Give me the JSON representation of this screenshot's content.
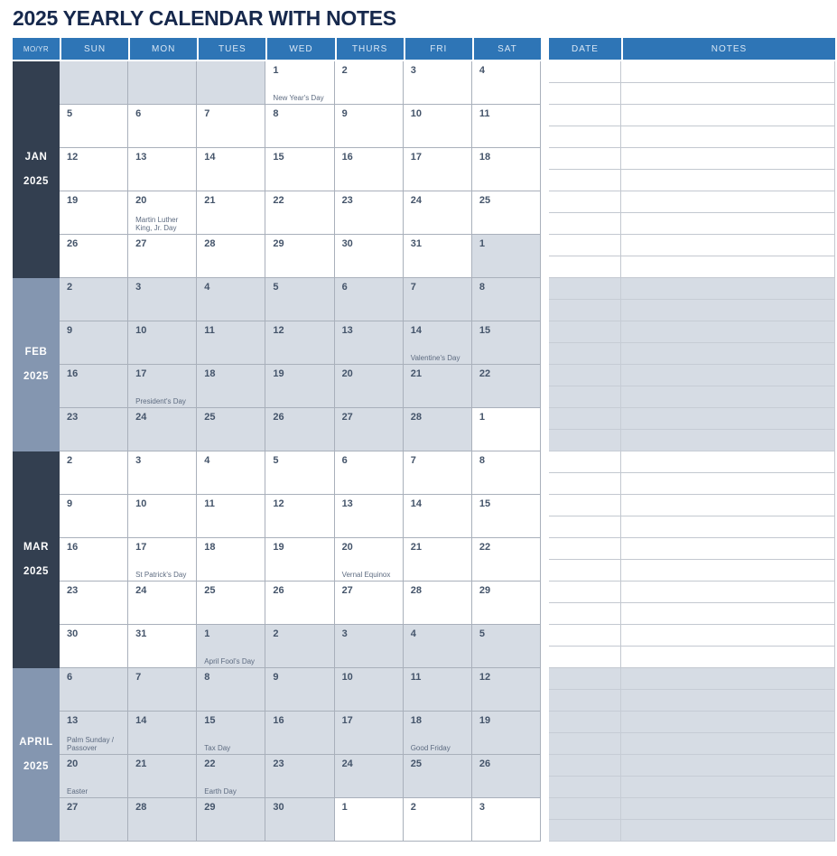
{
  "title": "2025 YEARLY CALENDAR WITH NOTES",
  "colors": {
    "header_blue": "#2e75b6",
    "band_dark": "#333f50",
    "band_slate": "#8496b0",
    "cell_gray": "#d6dce4",
    "date_number": "#44546a",
    "holiday_text": "#5d6b80",
    "title_navy": "#16284c"
  },
  "calendar": {
    "corner_label": "MO/YR",
    "day_headers": [
      "SUN",
      "MON",
      "TUES",
      "WED",
      "THURS",
      "FRI",
      "SAT"
    ],
    "months": [
      {
        "label_line1": "JAN",
        "label_line2": "2025",
        "band": "dark",
        "weeks": [
          [
            {
              "d": "",
              "f": "g"
            },
            {
              "d": "",
              "f": "g"
            },
            {
              "d": "",
              "f": "g"
            },
            {
              "d": "1",
              "h": "New Year's Day",
              "f": "w"
            },
            {
              "d": "2",
              "f": "w"
            },
            {
              "d": "3",
              "f": "w"
            },
            {
              "d": "4",
              "f": "w"
            }
          ],
          [
            {
              "d": "5",
              "f": "w"
            },
            {
              "d": "6",
              "f": "w"
            },
            {
              "d": "7",
              "f": "w"
            },
            {
              "d": "8",
              "f": "w"
            },
            {
              "d": "9",
              "f": "w"
            },
            {
              "d": "10",
              "f": "w"
            },
            {
              "d": "11",
              "f": "w"
            }
          ],
          [
            {
              "d": "12",
              "f": "w"
            },
            {
              "d": "13",
              "f": "w"
            },
            {
              "d": "14",
              "f": "w"
            },
            {
              "d": "15",
              "f": "w"
            },
            {
              "d": "16",
              "f": "w"
            },
            {
              "d": "17",
              "f": "w"
            },
            {
              "d": "18",
              "f": "w"
            }
          ],
          [
            {
              "d": "19",
              "f": "w"
            },
            {
              "d": "20",
              "h": "Martin Luther King, Jr. Day",
              "f": "w"
            },
            {
              "d": "21",
              "f": "w"
            },
            {
              "d": "22",
              "f": "w"
            },
            {
              "d": "23",
              "f": "w"
            },
            {
              "d": "24",
              "f": "w"
            },
            {
              "d": "25",
              "f": "w"
            }
          ],
          [
            {
              "d": "26",
              "f": "w"
            },
            {
              "d": "27",
              "f": "w"
            },
            {
              "d": "28",
              "f": "w"
            },
            {
              "d": "29",
              "f": "w"
            },
            {
              "d": "30",
              "f": "w"
            },
            {
              "d": "31",
              "f": "w"
            },
            {
              "d": "1",
              "f": "g"
            }
          ]
        ]
      },
      {
        "label_line1": "FEB",
        "label_line2": "2025",
        "band": "slate",
        "weeks": [
          [
            {
              "d": "2",
              "f": "g"
            },
            {
              "d": "3",
              "f": "g"
            },
            {
              "d": "4",
              "f": "g"
            },
            {
              "d": "5",
              "f": "g"
            },
            {
              "d": "6",
              "f": "g"
            },
            {
              "d": "7",
              "f": "g"
            },
            {
              "d": "8",
              "f": "g"
            }
          ],
          [
            {
              "d": "9",
              "f": "g"
            },
            {
              "d": "10",
              "f": "g"
            },
            {
              "d": "11",
              "f": "g"
            },
            {
              "d": "12",
              "f": "g"
            },
            {
              "d": "13",
              "f": "g"
            },
            {
              "d": "14",
              "h": "Valentine's Day",
              "f": "g"
            },
            {
              "d": "15",
              "f": "g"
            }
          ],
          [
            {
              "d": "16",
              "f": "g"
            },
            {
              "d": "17",
              "h": "President's Day",
              "f": "g"
            },
            {
              "d": "18",
              "f": "g"
            },
            {
              "d": "19",
              "f": "g"
            },
            {
              "d": "20",
              "f": "g"
            },
            {
              "d": "21",
              "f": "g"
            },
            {
              "d": "22",
              "f": "g"
            }
          ],
          [
            {
              "d": "23",
              "f": "g"
            },
            {
              "d": "24",
              "f": "g"
            },
            {
              "d": "25",
              "f": "g"
            },
            {
              "d": "26",
              "f": "g"
            },
            {
              "d": "27",
              "f": "g"
            },
            {
              "d": "28",
              "f": "g"
            },
            {
              "d": "1",
              "f": "w"
            }
          ]
        ]
      },
      {
        "label_line1": "MAR",
        "label_line2": "2025",
        "band": "dark",
        "weeks": [
          [
            {
              "d": "2",
              "f": "w"
            },
            {
              "d": "3",
              "f": "w"
            },
            {
              "d": "4",
              "f": "w"
            },
            {
              "d": "5",
              "f": "w"
            },
            {
              "d": "6",
              "f": "w"
            },
            {
              "d": "7",
              "f": "w"
            },
            {
              "d": "8",
              "f": "w"
            }
          ],
          [
            {
              "d": "9",
              "f": "w"
            },
            {
              "d": "10",
              "f": "w"
            },
            {
              "d": "11",
              "f": "w"
            },
            {
              "d": "12",
              "f": "w"
            },
            {
              "d": "13",
              "f": "w"
            },
            {
              "d": "14",
              "f": "w"
            },
            {
              "d": "15",
              "f": "w"
            }
          ],
          [
            {
              "d": "16",
              "f": "w"
            },
            {
              "d": "17",
              "h": "St Patrick's Day",
              "f": "w"
            },
            {
              "d": "18",
              "f": "w"
            },
            {
              "d": "19",
              "f": "w"
            },
            {
              "d": "20",
              "h": "Vernal Equinox",
              "f": "w"
            },
            {
              "d": "21",
              "f": "w"
            },
            {
              "d": "22",
              "f": "w"
            }
          ],
          [
            {
              "d": "23",
              "f": "w"
            },
            {
              "d": "24",
              "f": "w"
            },
            {
              "d": "25",
              "f": "w"
            },
            {
              "d": "26",
              "f": "w"
            },
            {
              "d": "27",
              "f": "w"
            },
            {
              "d": "28",
              "f": "w"
            },
            {
              "d": "29",
              "f": "w"
            }
          ],
          [
            {
              "d": "30",
              "f": "w"
            },
            {
              "d": "31",
              "f": "w"
            },
            {
              "d": "1",
              "h": "April Fool's Day",
              "f": "g"
            },
            {
              "d": "2",
              "f": "g"
            },
            {
              "d": "3",
              "f": "g"
            },
            {
              "d": "4",
              "f": "g"
            },
            {
              "d": "5",
              "f": "g"
            }
          ]
        ]
      },
      {
        "label_line1": "APRIL",
        "label_line2": "2025",
        "band": "slate",
        "weeks": [
          [
            {
              "d": "6",
              "f": "g"
            },
            {
              "d": "7",
              "f": "g"
            },
            {
              "d": "8",
              "f": "g"
            },
            {
              "d": "9",
              "f": "g"
            },
            {
              "d": "10",
              "f": "g"
            },
            {
              "d": "11",
              "f": "g"
            },
            {
              "d": "12",
              "f": "g"
            }
          ],
          [
            {
              "d": "13",
              "h": "Palm Sunday / Passover",
              "f": "g"
            },
            {
              "d": "14",
              "f": "g"
            },
            {
              "d": "15",
              "h": "Tax Day",
              "f": "g"
            },
            {
              "d": "16",
              "f": "g"
            },
            {
              "d": "17",
              "f": "g"
            },
            {
              "d": "18",
              "h": "Good Friday",
              "f": "g"
            },
            {
              "d": "19",
              "f": "g"
            }
          ],
          [
            {
              "d": "20",
              "h": "Easter",
              "f": "g"
            },
            {
              "d": "21",
              "f": "g"
            },
            {
              "d": "22",
              "h": "Earth Day",
              "f": "g"
            },
            {
              "d": "23",
              "f": "g"
            },
            {
              "d": "24",
              "f": "g"
            },
            {
              "d": "25",
              "f": "g"
            },
            {
              "d": "26",
              "f": "g"
            }
          ],
          [
            {
              "d": "27",
              "f": "g"
            },
            {
              "d": "28",
              "f": "g"
            },
            {
              "d": "29",
              "f": "g"
            },
            {
              "d": "30",
              "f": "g"
            },
            {
              "d": "1",
              "f": "w"
            },
            {
              "d": "2",
              "f": "w"
            },
            {
              "d": "3",
              "f": "w"
            }
          ]
        ]
      }
    ]
  },
  "notes_panel": {
    "date_header": "DATE",
    "notes_header": "NOTES",
    "sections": [
      {
        "count": 10,
        "fill": "w"
      },
      {
        "count": 8,
        "fill": "g"
      },
      {
        "count": 10,
        "fill": "w"
      },
      {
        "count": 8,
        "fill": "g"
      }
    ]
  }
}
